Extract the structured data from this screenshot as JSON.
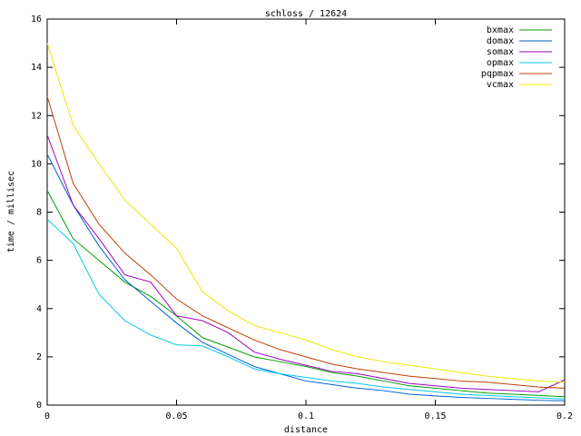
{
  "chart_data": {
    "type": "line",
    "title": "schloss / 12624",
    "xlabel": "distance",
    "ylabel": "time / millisec",
    "x": [
      0,
      0.01,
      0.02,
      0.03,
      0.04,
      0.05,
      0.06,
      0.07,
      0.08,
      0.09,
      0.1,
      0.11,
      0.12,
      0.13,
      0.14,
      0.15,
      0.16,
      0.17,
      0.18,
      0.19,
      0.2
    ],
    "xlim": [
      0,
      0.2
    ],
    "xticks": [
      0,
      0.05,
      0.1,
      0.15,
      0.2
    ],
    "ylim": [
      0,
      16
    ],
    "yticks": [
      0,
      2,
      4,
      6,
      8,
      10,
      12,
      14,
      16
    ],
    "grid": false,
    "legend": "top-right",
    "series": [
      {
        "name": "bxmax",
        "color": "#00a000",
        "values": [
          8.9,
          6.9,
          6.0,
          5.1,
          4.5,
          3.7,
          2.8,
          2.4,
          2.0,
          1.8,
          1.6,
          1.35,
          1.2,
          1.0,
          0.8,
          0.7,
          0.6,
          0.5,
          0.45,
          0.4,
          0.35
        ]
      },
      {
        "name": "domax",
        "color": "#0060d0",
        "values": [
          10.4,
          8.3,
          6.6,
          5.2,
          4.3,
          3.4,
          2.6,
          2.1,
          1.6,
          1.3,
          1.0,
          0.85,
          0.7,
          0.6,
          0.45,
          0.38,
          0.32,
          0.28,
          0.24,
          0.2,
          0.18
        ]
      },
      {
        "name": "somax",
        "color": "#a000c0",
        "values": [
          11.2,
          8.3,
          6.9,
          5.4,
          5.1,
          3.7,
          3.5,
          3.0,
          2.2,
          1.9,
          1.65,
          1.4,
          1.3,
          1.1,
          0.9,
          0.8,
          0.7,
          0.65,
          0.6,
          0.55,
          1.05
        ]
      },
      {
        "name": "opmax",
        "color": "#00c8e8",
        "values": [
          7.7,
          6.7,
          4.6,
          3.5,
          2.9,
          2.5,
          2.45,
          2.0,
          1.5,
          1.3,
          1.15,
          1.0,
          0.9,
          0.75,
          0.65,
          0.55,
          0.45,
          0.4,
          0.35,
          0.3,
          0.25
        ]
      },
      {
        "name": "pqpmax",
        "color": "#c04000",
        "values": [
          12.8,
          9.2,
          7.5,
          6.3,
          5.4,
          4.4,
          3.7,
          3.2,
          2.7,
          2.3,
          2.0,
          1.7,
          1.5,
          1.35,
          1.2,
          1.1,
          1.0,
          0.95,
          0.85,
          0.75,
          0.7
        ]
      },
      {
        "name": "vcmax",
        "color": "#e8e800",
        "values": [
          15.0,
          11.6,
          10.0,
          8.5,
          7.5,
          6.5,
          4.7,
          3.9,
          3.3,
          3.0,
          2.7,
          2.3,
          2.0,
          1.8,
          1.65,
          1.5,
          1.35,
          1.2,
          1.1,
          1.0,
          0.95
        ]
      }
    ]
  }
}
